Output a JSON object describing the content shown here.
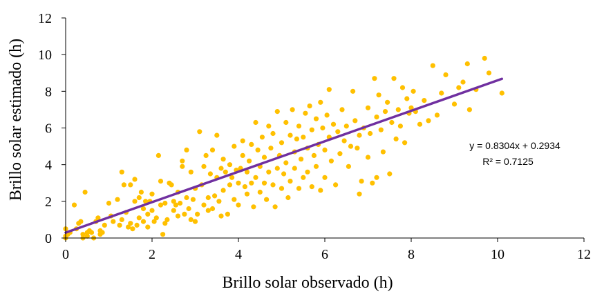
{
  "chart_data": {
    "type": "scatter",
    "title": "",
    "xlabel": "Brillo solar observado (h)",
    "ylabel": "Brillo solar estimado (h)",
    "xlim": [
      0,
      12
    ],
    "ylim": [
      0,
      12
    ],
    "xticks": [
      0,
      2,
      4,
      6,
      8,
      10,
      12
    ],
    "yticks": [
      0,
      2,
      4,
      6,
      8,
      10,
      12
    ],
    "xtick_labels": [
      "0",
      "2",
      "4",
      "6",
      "8",
      "10",
      "12"
    ],
    "ytick_labels": [
      "0",
      "2",
      "4",
      "6",
      "8",
      "10",
      "12"
    ],
    "grid": false,
    "colors": {
      "points": "#FFC000",
      "trendline": "#7030A0",
      "axis": "#000000"
    },
    "trendline": {
      "slope": 0.8304,
      "intercept": 0.2934,
      "x_range": [
        0,
        10.1
      ]
    },
    "annotations": {
      "equation": "y = 0.8304x + 0.2934",
      "r_squared": "R² = 0.7125"
    },
    "series": [
      {
        "name": "Brillo solar",
        "points": [
          [
            0.0,
            0.0
          ],
          [
            0.0,
            0.1
          ],
          [
            0.0,
            0.5
          ],
          [
            0.05,
            0.2
          ],
          [
            0.1,
            0.3
          ],
          [
            0.2,
            1.8
          ],
          [
            0.25,
            0.5
          ],
          [
            0.3,
            0.8
          ],
          [
            0.35,
            0.9
          ],
          [
            0.4,
            0.2
          ],
          [
            0.4,
            0.0
          ],
          [
            0.45,
            2.5
          ],
          [
            0.5,
            0.3
          ],
          [
            0.5,
            0.1
          ],
          [
            0.55,
            0.4
          ],
          [
            0.6,
            0.3
          ],
          [
            0.65,
            0.0
          ],
          [
            0.7,
            0.9
          ],
          [
            0.75,
            1.1
          ],
          [
            0.8,
            0.4
          ],
          [
            0.8,
            0.2
          ],
          [
            0.85,
            0.3
          ],
          [
            0.9,
            0.7
          ],
          [
            1.0,
            1.9
          ],
          [
            1.05,
            1.2
          ],
          [
            1.1,
            0.9
          ],
          [
            1.2,
            2.1
          ],
          [
            1.25,
            0.7
          ],
          [
            1.3,
            1.0
          ],
          [
            1.3,
            3.6
          ],
          [
            1.35,
            2.9
          ],
          [
            1.4,
            1.4
          ],
          [
            1.45,
            0.6
          ],
          [
            1.5,
            2.9
          ],
          [
            1.5,
            0.8
          ],
          [
            1.55,
            0.5
          ],
          [
            1.6,
            3.2
          ],
          [
            1.6,
            2.0
          ],
          [
            1.65,
            0.7
          ],
          [
            1.7,
            2.2
          ],
          [
            1.7,
            1.1
          ],
          [
            1.75,
            2.5
          ],
          [
            1.8,
            0.9
          ],
          [
            1.8,
            1.6
          ],
          [
            1.85,
            2.0
          ],
          [
            1.9,
            1.3
          ],
          [
            1.9,
            0.6
          ],
          [
            1.95,
            2.0
          ],
          [
            2.0,
            1.5
          ],
          [
            2.0,
            2.4
          ],
          [
            2.05,
            0.9
          ],
          [
            2.1,
            1.1
          ],
          [
            2.15,
            4.5
          ],
          [
            2.2,
            1.8
          ],
          [
            2.2,
            3.1
          ],
          [
            2.25,
            0.2
          ],
          [
            2.3,
            0.8
          ],
          [
            2.3,
            1.9
          ],
          [
            2.35,
            1.0
          ],
          [
            2.4,
            3.0
          ],
          [
            2.45,
            2.9
          ],
          [
            2.5,
            1.5
          ],
          [
            2.5,
            2.0
          ],
          [
            2.55,
            1.8
          ],
          [
            2.6,
            2.5
          ],
          [
            2.6,
            1.2
          ],
          [
            2.65,
            1.9
          ],
          [
            2.7,
            3.9
          ],
          [
            2.7,
            4.2
          ],
          [
            2.75,
            1.3
          ],
          [
            2.8,
            2.2
          ],
          [
            2.8,
            4.8
          ],
          [
            2.85,
            1.6
          ],
          [
            2.9,
            3.6
          ],
          [
            2.9,
            1.0
          ],
          [
            2.95,
            2.1
          ],
          [
            3.0,
            2.7
          ],
          [
            3.0,
            0.9
          ],
          [
            3.05,
            1.3
          ],
          [
            3.1,
            5.8
          ],
          [
            3.15,
            2.9
          ],
          [
            3.2,
            3.9
          ],
          [
            3.2,
            1.8
          ],
          [
            3.25,
            4.5
          ],
          [
            3.3,
            2.2
          ],
          [
            3.3,
            1.5
          ],
          [
            3.35,
            3.5
          ],
          [
            3.4,
            1.6
          ],
          [
            3.4,
            4.8
          ],
          [
            3.45,
            2.3
          ],
          [
            3.5,
            3.3
          ],
          [
            3.5,
            5.6
          ],
          [
            3.55,
            2.0
          ],
          [
            3.6,
            1.2
          ],
          [
            3.6,
            3.8
          ],
          [
            3.65,
            2.6
          ],
          [
            3.65,
            4.3
          ],
          [
            3.7,
            3.6
          ],
          [
            3.75,
            1.3
          ],
          [
            3.8,
            2.9
          ],
          [
            3.8,
            4.0
          ],
          [
            3.85,
            3.3
          ],
          [
            3.9,
            5.0
          ],
          [
            3.9,
            2.1
          ],
          [
            3.95,
            3.7
          ],
          [
            4.0,
            3.0
          ],
          [
            4.0,
            1.8
          ],
          [
            4.05,
            3.8
          ],
          [
            4.1,
            4.5
          ],
          [
            4.1,
            5.3
          ],
          [
            4.15,
            2.8
          ],
          [
            4.2,
            3.6
          ],
          [
            4.2,
            2.4
          ],
          [
            4.25,
            4.2
          ],
          [
            4.3,
            3.0
          ],
          [
            4.3,
            5.1
          ],
          [
            4.35,
            1.7
          ],
          [
            4.4,
            3.3
          ],
          [
            4.4,
            6.3
          ],
          [
            4.45,
            4.8
          ],
          [
            4.5,
            2.5
          ],
          [
            4.5,
            3.9
          ],
          [
            4.55,
            5.5
          ],
          [
            4.6,
            3.0
          ],
          [
            4.6,
            4.4
          ],
          [
            4.65,
            2.1
          ],
          [
            4.7,
            6.1
          ],
          [
            4.7,
            3.6
          ],
          [
            4.75,
            4.9
          ],
          [
            4.8,
            2.9
          ],
          [
            4.8,
            5.7
          ],
          [
            4.85,
            1.7
          ],
          [
            4.9,
            3.8
          ],
          [
            4.9,
            6.9
          ],
          [
            4.95,
            4.5
          ],
          [
            5.0,
            2.7
          ],
          [
            5.0,
            5.2
          ],
          [
            5.05,
            3.5
          ],
          [
            5.1,
            6.3
          ],
          [
            5.1,
            4.1
          ],
          [
            5.15,
            2.2
          ],
          [
            5.2,
            5.6
          ],
          [
            5.2,
            3.1
          ],
          [
            5.25,
            7.0
          ],
          [
            5.3,
            4.7
          ],
          [
            5.3,
            3.8
          ],
          [
            5.35,
            5.4
          ],
          [
            5.4,
            2.7
          ],
          [
            5.4,
            6.1
          ],
          [
            5.45,
            4.3
          ],
          [
            5.5,
            5.5
          ],
          [
            5.5,
            3.3
          ],
          [
            5.55,
            6.8
          ],
          [
            5.6,
            4.9
          ],
          [
            5.6,
            3.6
          ],
          [
            5.65,
            7.2
          ],
          [
            5.7,
            5.9
          ],
          [
            5.7,
            2.8
          ],
          [
            5.75,
            4.5
          ],
          [
            5.8,
            6.5
          ],
          [
            5.8,
            3.9
          ],
          [
            5.85,
            5.1
          ],
          [
            5.9,
            7.4
          ],
          [
            5.9,
            2.6
          ],
          [
            5.95,
            6.0
          ],
          [
            6.0,
            4.8
          ],
          [
            6.0,
            3.3
          ],
          [
            6.05,
            6.7
          ],
          [
            6.1,
            5.5
          ],
          [
            6.1,
            8.1
          ],
          [
            6.15,
            4.2
          ],
          [
            6.2,
            6.2
          ],
          [
            6.25,
            2.9
          ],
          [
            6.3,
            5.8
          ],
          [
            6.35,
            4.6
          ],
          [
            6.4,
            7.0
          ],
          [
            6.45,
            5.3
          ],
          [
            6.5,
            6.1
          ],
          [
            6.55,
            3.9
          ],
          [
            6.6,
            5.0
          ],
          [
            6.65,
            8.0
          ],
          [
            6.7,
            6.4
          ],
          [
            6.75,
            4.9
          ],
          [
            6.8,
            5.6
          ],
          [
            6.8,
            2.4
          ],
          [
            6.85,
            3.1
          ],
          [
            6.9,
            6.0
          ],
          [
            7.0,
            7.1
          ],
          [
            7.0,
            4.4
          ],
          [
            7.05,
            5.7
          ],
          [
            7.1,
            3.0
          ],
          [
            7.15,
            8.7
          ],
          [
            7.2,
            6.6
          ],
          [
            7.2,
            3.3
          ],
          [
            7.25,
            7.8
          ],
          [
            7.3,
            5.9
          ],
          [
            7.35,
            4.7
          ],
          [
            7.4,
            6.9
          ],
          [
            7.45,
            7.4
          ],
          [
            7.5,
            3.5
          ],
          [
            7.55,
            6.3
          ],
          [
            7.6,
            8.7
          ],
          [
            7.65,
            5.4
          ],
          [
            7.7,
            7.0
          ],
          [
            7.75,
            6.1
          ],
          [
            7.8,
            8.2
          ],
          [
            7.85,
            5.2
          ],
          [
            7.9,
            7.6
          ],
          [
            7.95,
            6.8
          ],
          [
            8.0,
            7.1
          ],
          [
            8.05,
            8.0
          ],
          [
            8.1,
            6.9
          ],
          [
            8.2,
            6.2
          ],
          [
            8.3,
            7.5
          ],
          [
            8.4,
            6.4
          ],
          [
            8.5,
            9.4
          ],
          [
            8.6,
            6.7
          ],
          [
            8.7,
            7.9
          ],
          [
            8.8,
            8.9
          ],
          [
            9.0,
            7.3
          ],
          [
            9.1,
            8.2
          ],
          [
            9.2,
            8.5
          ],
          [
            9.3,
            9.5
          ],
          [
            9.35,
            7.0
          ],
          [
            9.5,
            8.1
          ],
          [
            9.7,
            9.8
          ],
          [
            9.8,
            9.0
          ],
          [
            10.1,
            7.9
          ]
        ]
      }
    ]
  }
}
